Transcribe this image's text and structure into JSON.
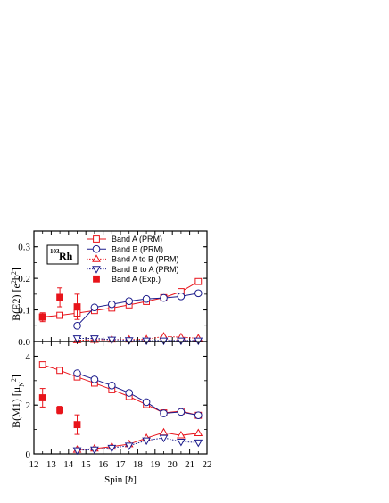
{
  "chart_data": [
    {
      "type": "line",
      "panel": "top",
      "ylabel_main": "B(E2) [e",
      "ylabel_sup1": "2",
      "ylabel_mid": "b",
      "ylabel_sup2": "2",
      "ylabel_end": "]",
      "ylim": [
        0,
        0.35
      ],
      "yticks": [
        "0.0",
        "0.1",
        "0.2",
        "0.3"
      ],
      "ytick_values": [
        0,
        0.1,
        0.2,
        0.3
      ],
      "xlim": [
        12,
        22
      ],
      "nucleus_mass": "103",
      "nucleus_symbol": "Rh",
      "legend_position": "top-right",
      "series": [
        {
          "name": "Band A (PRM)",
          "color": "#e8141b",
          "marker": "square-open",
          "line": "solid",
          "x": [
            12.5,
            13.5,
            14.5,
            15.5,
            16.5,
            17.5,
            18.5,
            19.5,
            20.5,
            21.5
          ],
          "y": [
            0.078,
            0.083,
            0.09,
            0.098,
            0.106,
            0.116,
            0.127,
            0.139,
            0.158,
            0.19
          ]
        },
        {
          "name": "Band B (PRM)",
          "color": "#1c1c8c",
          "marker": "circle-open",
          "line": "solid",
          "x": [
            14.5,
            15.5,
            16.5,
            17.5,
            18.5,
            19.5,
            20.5,
            21.5
          ],
          "y": [
            0.05,
            0.108,
            0.118,
            0.128,
            0.135,
            0.138,
            0.143,
            0.153
          ]
        },
        {
          "name": "Band A to B (PRM)",
          "color": "#e8141b",
          "marker": "triangle-up-open",
          "line": "dotted",
          "x": [
            14.5,
            15.5,
            16.5,
            17.5,
            18.5,
            19.5,
            20.5,
            21.5
          ],
          "y": [
            0.004,
            0.005,
            0.006,
            0.006,
            0.007,
            0.016,
            0.014,
            0.01
          ]
        },
        {
          "name": "Band B to A (PRM)",
          "color": "#1c1c8c",
          "marker": "triangle-down-open",
          "line": "dotted",
          "x": [
            14.5,
            15.5,
            16.5,
            17.5,
            18.5,
            19.5,
            20.5,
            21.5
          ],
          "y": [
            0.01,
            0.01,
            0.006,
            0.004,
            0.003,
            0.003,
            0.003,
            0.003
          ]
        },
        {
          "name": "Band A (Exp.)",
          "color": "#e8141b",
          "marker": "square-filled",
          "line": "none",
          "x": [
            12.5,
            13.5,
            14.5
          ],
          "y": [
            0.077,
            0.14,
            0.11
          ],
          "err": [
            0.014,
            0.03,
            0.04
          ]
        }
      ]
    },
    {
      "type": "line",
      "panel": "bottom",
      "ylabel_main": "B(M1) [μ",
      "ylabel_sub": "N",
      "ylabel_sup": "2",
      "ylabel_end": "]",
      "ylim": [
        0,
        4.6
      ],
      "yticks": [
        "0",
        "2",
        "4"
      ],
      "ytick_values": [
        0,
        2,
        4
      ],
      "xlabel_main": "Spin [",
      "xlabel_hbar": "ħ",
      "xlabel_end": "]",
      "xlim": [
        12,
        22
      ],
      "xticks": [
        "12",
        "13",
        "14",
        "15",
        "16",
        "17",
        "18",
        "19",
        "20",
        "21",
        "22"
      ],
      "xtick_values": [
        12,
        13,
        14,
        15,
        16,
        17,
        18,
        19,
        20,
        21,
        22
      ],
      "series": [
        {
          "name": "Band A (PRM)",
          "color": "#e8141b",
          "marker": "square-open",
          "line": "solid",
          "x": [
            12.5,
            13.5,
            14.5,
            15.5,
            16.5,
            17.5,
            18.5,
            19.5,
            20.5,
            21.5
          ],
          "y": [
            3.65,
            3.42,
            3.15,
            2.9,
            2.63,
            2.35,
            2.02,
            1.68,
            1.75,
            1.58
          ]
        },
        {
          "name": "Band B (PRM)",
          "color": "#1c1c8c",
          "marker": "circle-open",
          "line": "solid",
          "x": [
            14.5,
            15.5,
            16.5,
            17.5,
            18.5,
            19.5,
            20.5,
            21.5
          ],
          "y": [
            3.3,
            3.05,
            2.8,
            2.5,
            2.12,
            1.66,
            1.72,
            1.58
          ]
        },
        {
          "name": "Band A to B (PRM)",
          "color": "#e8141b",
          "marker": "triangle-up-open",
          "line": "solid",
          "x": [
            14.5,
            15.5,
            16.5,
            17.5,
            18.5,
            19.5,
            20.5,
            21.5
          ],
          "y": [
            0.17,
            0.22,
            0.3,
            0.4,
            0.65,
            0.88,
            0.76,
            0.85
          ]
        },
        {
          "name": "Band B to A (PRM)",
          "color": "#1c1c8c",
          "marker": "triangle-down-open",
          "line": "dotted",
          "x": [
            14.5,
            15.5,
            16.5,
            17.5,
            18.5,
            19.5,
            20.5,
            21.5
          ],
          "y": [
            0.15,
            0.18,
            0.25,
            0.34,
            0.55,
            0.66,
            0.5,
            0.47
          ]
        },
        {
          "name": "Band A (Exp.)",
          "color": "#e8141b",
          "marker": "square-filled",
          "line": "none",
          "x": [
            12.5,
            13.5,
            14.5
          ],
          "y": [
            2.3,
            1.8,
            1.2
          ],
          "err": [
            0.38,
            0.15,
            0.4
          ]
        }
      ]
    }
  ]
}
